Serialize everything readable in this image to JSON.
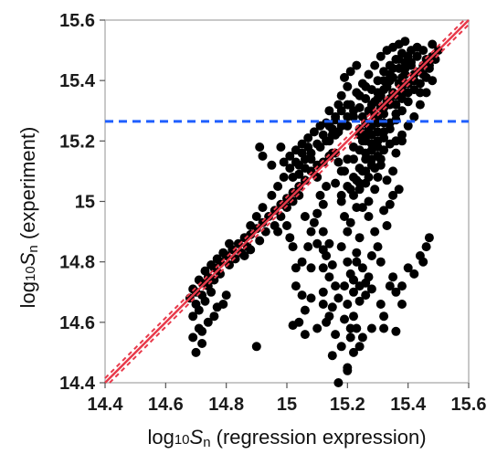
{
  "chart_data": {
    "type": "scatter",
    "title": "",
    "xlabel": {
      "prefix": "log",
      "base": "10",
      "symbol": "S",
      "sub": "n",
      "suffix": " (regression expression)"
    },
    "ylabel": {
      "prefix": "log",
      "base": "10",
      "symbol": "S",
      "sub": "n",
      "suffix": " (experiment)"
    },
    "xlim": [
      14.4,
      15.6
    ],
    "ylim": [
      14.4,
      15.6
    ],
    "x_ticks": [
      {
        "value": 14.4,
        "label": "14.4"
      },
      {
        "value": 14.6,
        "label": "14.6"
      },
      {
        "value": 14.8,
        "label": "14.8"
      },
      {
        "value": 15.0,
        "label": "15"
      },
      {
        "value": 15.2,
        "label": "15.2"
      },
      {
        "value": 15.4,
        "label": "15.4"
      },
      {
        "value": 15.6,
        "label": "15.6"
      }
    ],
    "y_ticks": [
      {
        "value": 14.4,
        "label": "14.4"
      },
      {
        "value": 14.6,
        "label": "14.6"
      },
      {
        "value": 14.8,
        "label": "14.8"
      },
      {
        "value": 15.0,
        "label": "15"
      },
      {
        "value": 15.2,
        "label": "15.2"
      },
      {
        "value": 15.4,
        "label": "15.4"
      },
      {
        "value": 15.6,
        "label": "15.6"
      }
    ],
    "grid": false,
    "legend": "none",
    "reference_lines": [
      {
        "kind": "fit",
        "from": [
          14.4,
          14.4
        ],
        "to": [
          15.6,
          15.6
        ],
        "color": "#e8394a",
        "style": "solid",
        "confidence_band": 0.015
      },
      {
        "kind": "horizontal",
        "y": 15.265,
        "color": "#1f5fff",
        "style": "dashed"
      }
    ],
    "point_color": "#000000",
    "points": [
      [
        14.68,
        14.68
      ],
      [
        14.7,
        14.7
      ],
      [
        14.72,
        14.73
      ],
      [
        14.74,
        14.75
      ],
      [
        14.76,
        14.78
      ],
      [
        14.78,
        14.8
      ],
      [
        14.8,
        14.82
      ],
      [
        14.82,
        14.84
      ],
      [
        14.84,
        14.86
      ],
      [
        14.86,
        14.88
      ],
      [
        14.88,
        14.89
      ],
      [
        14.9,
        14.91
      ],
      [
        14.92,
        14.93
      ],
      [
        14.94,
        14.95
      ],
      [
        14.96,
        14.97
      ],
      [
        14.98,
        14.99
      ],
      [
        15.0,
        15.01
      ],
      [
        15.02,
        15.03
      ],
      [
        15.04,
        15.05
      ],
      [
        15.06,
        15.07
      ],
      [
        14.7,
        14.66
      ],
      [
        14.72,
        14.69
      ],
      [
        14.74,
        14.72
      ],
      [
        14.76,
        14.74
      ],
      [
        14.78,
        14.76
      ],
      [
        14.81,
        14.79
      ],
      [
        14.83,
        14.81
      ],
      [
        14.85,
        14.83
      ],
      [
        14.87,
        14.85
      ],
      [
        14.69,
        14.62
      ],
      [
        14.71,
        14.64
      ],
      [
        14.73,
        14.67
      ],
      [
        14.75,
        14.7
      ],
      [
        14.69,
        14.71
      ],
      [
        14.71,
        14.74
      ],
      [
        14.73,
        14.77
      ],
      [
        14.75,
        14.79
      ],
      [
        14.77,
        14.81
      ],
      [
        14.79,
        14.83
      ],
      [
        14.81,
        14.86
      ],
      [
        14.7,
        14.5
      ],
      [
        14.72,
        14.53
      ],
      [
        14.72,
        14.57
      ],
      [
        14.74,
        14.6
      ],
      [
        14.76,
        14.62
      ],
      [
        14.77,
        14.65
      ],
      [
        14.79,
        14.66
      ],
      [
        14.8,
        14.69
      ],
      [
        14.69,
        14.55
      ],
      [
        14.71,
        14.58
      ],
      [
        14.9,
        14.52
      ],
      [
        14.86,
        14.82
      ],
      [
        14.88,
        14.84
      ],
      [
        14.91,
        14.87
      ],
      [
        14.93,
        14.9
      ],
      [
        14.96,
        14.92
      ],
      [
        14.98,
        14.95
      ],
      [
        15.0,
        14.98
      ],
      [
        15.02,
        15.0
      ],
      [
        15.04,
        15.02
      ],
      [
        14.88,
        14.92
      ],
      [
        14.9,
        14.95
      ],
      [
        14.92,
        14.98
      ],
      [
        14.95,
        15.02
      ],
      [
        14.97,
        15.05
      ],
      [
        14.99,
        15.08
      ],
      [
        15.01,
        15.11
      ],
      [
        15.03,
        15.13
      ],
      [
        15.05,
        15.16
      ],
      [
        15.07,
        15.18
      ],
      [
        14.92,
        15.15
      ],
      [
        14.91,
        15.18
      ],
      [
        14.95,
        15.12
      ],
      [
        14.98,
        15.18
      ],
      [
        14.97,
        14.9
      ],
      [
        15.0,
        14.92
      ],
      [
        15.01,
        14.88
      ],
      [
        15.02,
        14.85
      ],
      [
        15.03,
        14.78
      ],
      [
        15.03,
        14.72
      ],
      [
        15.05,
        14.69
      ],
      [
        15.04,
        14.6
      ],
      [
        15.06,
        14.64
      ],
      [
        15.05,
        14.8
      ],
      [
        15.07,
        14.85
      ],
      [
        15.06,
        14.56
      ],
      [
        15.02,
        14.59
      ],
      [
        15.08,
        14.68
      ],
      [
        15.08,
        15.1
      ],
      [
        15.1,
        15.12
      ],
      [
        15.12,
        15.13
      ],
      [
        15.14,
        15.15
      ],
      [
        15.16,
        15.16
      ],
      [
        15.11,
        15.18
      ],
      [
        15.13,
        15.2
      ],
      [
        15.15,
        15.22
      ],
      [
        15.17,
        15.23
      ],
      [
        15.1,
        15.08
      ],
      [
        15.1,
        14.96
      ],
      [
        15.12,
        14.99
      ],
      [
        15.11,
        15.02
      ],
      [
        15.13,
        15.05
      ],
      [
        15.09,
        14.93
      ],
      [
        15.12,
        14.9
      ],
      [
        15.14,
        14.86
      ],
      [
        15.13,
        14.82
      ],
      [
        15.15,
        14.79
      ],
      [
        15.14,
        14.75
      ],
      [
        15.16,
        14.72
      ],
      [
        15.12,
        14.66
      ],
      [
        15.14,
        14.62
      ],
      [
        15.1,
        14.58
      ],
      [
        15.16,
        14.56
      ],
      [
        15.18,
        14.52
      ],
      [
        15.15,
        14.49
      ],
      [
        15.2,
        14.45
      ],
      [
        15.17,
        14.4
      ],
      [
        15.12,
        14.7
      ],
      [
        15.18,
        15.0
      ],
      [
        15.19,
        14.95
      ],
      [
        15.2,
        14.9
      ],
      [
        15.18,
        14.85
      ],
      [
        15.2,
        14.8
      ],
      [
        15.21,
        14.76
      ],
      [
        15.19,
        14.72
      ],
      [
        15.22,
        14.7
      ],
      [
        15.2,
        14.66
      ],
      [
        15.22,
        14.62
      ],
      [
        15.23,
        14.58
      ],
      [
        15.21,
        14.55
      ],
      [
        15.24,
        14.52
      ],
      [
        15.19,
        14.61
      ],
      [
        15.17,
        14.68
      ],
      [
        15.22,
        14.74
      ],
      [
        15.23,
        14.83
      ],
      [
        15.24,
        14.88
      ],
      [
        15.21,
        14.93
      ],
      [
        15.23,
        14.98
      ],
      [
        15.22,
        14.74
      ],
      [
        15.24,
        14.72
      ],
      [
        15.26,
        14.73
      ],
      [
        15.27,
        14.75
      ],
      [
        15.25,
        14.78
      ],
      [
        15.23,
        14.8
      ],
      [
        15.26,
        14.69
      ],
      [
        15.28,
        14.71
      ],
      [
        15.24,
        14.67
      ],
      [
        15.18,
        15.02
      ],
      [
        15.2,
        15.05
      ],
      [
        15.22,
        15.08
      ],
      [
        15.24,
        15.11
      ],
      [
        15.26,
        15.14
      ],
      [
        15.28,
        15.17
      ],
      [
        15.3,
        15.2
      ],
      [
        15.32,
        15.23
      ],
      [
        15.34,
        15.26
      ],
      [
        15.36,
        15.29
      ],
      [
        15.16,
        15.06
      ],
      [
        15.18,
        15.1
      ],
      [
        15.2,
        15.14
      ],
      [
        15.22,
        15.18
      ],
      [
        15.24,
        15.22
      ],
      [
        15.26,
        15.26
      ],
      [
        15.28,
        15.3
      ],
      [
        15.3,
        15.34
      ],
      [
        15.32,
        15.37
      ],
      [
        15.34,
        15.4
      ],
      [
        15.2,
        15.25
      ],
      [
        15.22,
        15.28
      ],
      [
        15.24,
        15.31
      ],
      [
        15.26,
        15.34
      ],
      [
        15.28,
        15.37
      ],
      [
        15.3,
        15.4
      ],
      [
        15.32,
        15.43
      ],
      [
        15.34,
        15.45
      ],
      [
        15.36,
        15.47
      ],
      [
        15.38,
        15.49
      ],
      [
        15.22,
        15.02
      ],
      [
        15.24,
        15.06
      ],
      [
        15.26,
        15.1
      ],
      [
        15.28,
        15.14
      ],
      [
        15.3,
        15.18
      ],
      [
        15.32,
        15.21
      ],
      [
        15.34,
        15.24
      ],
      [
        15.36,
        15.27
      ],
      [
        15.38,
        15.3
      ],
      [
        15.4,
        15.33
      ],
      [
        15.21,
        15.32
      ],
      [
        15.23,
        15.36
      ],
      [
        15.25,
        15.39
      ],
      [
        15.27,
        15.42
      ],
      [
        15.29,
        15.45
      ],
      [
        15.31,
        15.48
      ],
      [
        15.33,
        15.5
      ],
      [
        15.35,
        15.51
      ],
      [
        15.37,
        15.52
      ],
      [
        15.39,
        15.53
      ],
      [
        15.25,
        15.2
      ],
      [
        15.27,
        15.24
      ],
      [
        15.29,
        15.28
      ],
      [
        15.31,
        15.31
      ],
      [
        15.33,
        15.33
      ],
      [
        15.35,
        15.36
      ],
      [
        15.37,
        15.39
      ],
      [
        15.39,
        15.42
      ],
      [
        15.41,
        15.45
      ],
      [
        15.43,
        15.48
      ],
      [
        15.4,
        15.36
      ],
      [
        15.42,
        15.4
      ],
      [
        15.44,
        15.43
      ],
      [
        15.46,
        15.47
      ],
      [
        15.45,
        15.5
      ],
      [
        15.43,
        15.51
      ],
      [
        15.41,
        15.5
      ],
      [
        15.44,
        15.36
      ],
      [
        15.46,
        15.41
      ],
      [
        15.38,
        15.34
      ],
      [
        15.25,
        15.28
      ],
      [
        15.27,
        15.3
      ],
      [
        15.29,
        15.33
      ],
      [
        15.31,
        15.35
      ],
      [
        15.33,
        15.38
      ],
      [
        15.35,
        15.41
      ],
      [
        15.37,
        15.44
      ],
      [
        15.39,
        15.46
      ],
      [
        15.28,
        15.22
      ],
      [
        15.3,
        15.26
      ],
      [
        15.32,
        15.29
      ],
      [
        15.34,
        15.32
      ],
      [
        15.36,
        15.35
      ],
      [
        15.38,
        15.38
      ],
      [
        15.26,
        15.16
      ],
      [
        15.28,
        15.19
      ],
      [
        15.3,
        15.23
      ],
      [
        15.32,
        15.26
      ],
      [
        15.24,
        15.24
      ],
      [
        15.26,
        15.22
      ],
      [
        15.25,
        14.98
      ],
      [
        15.27,
        15.0
      ],
      [
        15.29,
        15.04
      ],
      [
        15.27,
        14.95
      ],
      [
        15.29,
        14.9
      ],
      [
        15.3,
        14.85
      ],
      [
        15.28,
        14.82
      ],
      [
        15.31,
        14.8
      ],
      [
        15.33,
        15.07
      ],
      [
        15.35,
        15.1
      ],
      [
        15.32,
        14.97
      ],
      [
        15.34,
        14.99
      ],
      [
        15.33,
        14.92
      ],
      [
        15.35,
        15.02
      ],
      [
        15.37,
        15.04
      ],
      [
        15.36,
        15.16
      ],
      [
        15.38,
        15.2
      ],
      [
        15.3,
        15.08
      ],
      [
        15.31,
        15.12
      ],
      [
        15.16,
        15.28
      ],
      [
        15.17,
        15.32
      ],
      [
        15.14,
        15.3
      ],
      [
        15.13,
        15.26
      ],
      [
        15.15,
        15.24
      ],
      [
        15.18,
        15.35
      ],
      [
        15.2,
        15.38
      ],
      [
        15.19,
        15.41
      ],
      [
        15.21,
        15.43
      ],
      [
        15.23,
        15.45
      ],
      [
        15.28,
        14.58
      ],
      [
        15.32,
        14.58
      ],
      [
        15.32,
        14.62
      ],
      [
        15.36,
        14.57
      ],
      [
        15.34,
        14.72
      ],
      [
        15.38,
        14.72
      ],
      [
        15.4,
        14.78
      ],
      [
        15.42,
        14.76
      ],
      [
        15.44,
        14.82
      ],
      [
        15.46,
        14.85
      ],
      [
        15.47,
        14.88
      ],
      [
        15.45,
        14.8
      ],
      [
        15.36,
        14.7
      ],
      [
        15.38,
        14.66
      ],
      [
        15.31,
        14.66
      ],
      [
        15.35,
        14.75
      ],
      [
        15.12,
        14.78
      ],
      [
        15.1,
        14.86
      ],
      [
        15.08,
        14.9
      ],
      [
        15.06,
        14.95
      ],
      [
        15.13,
        14.6
      ],
      [
        15.15,
        14.65
      ],
      [
        15.2,
        14.44
      ],
      [
        15.25,
        14.55
      ],
      [
        15.21,
        14.58
      ],
      [
        15.22,
        14.5
      ],
      [
        15.1,
        14.96
      ],
      [
        15.12,
        14.84
      ],
      [
        15.08,
        14.78
      ],
      [
        15.36,
        15.2
      ],
      [
        15.38,
        15.22
      ],
      [
        15.4,
        15.25
      ],
      [
        15.42,
        15.28
      ],
      [
        15.44,
        15.32
      ],
      [
        15.46,
        15.36
      ],
      [
        15.48,
        15.4
      ],
      [
        15.47,
        15.44
      ],
      [
        15.48,
        15.48
      ],
      [
        15.45,
        15.45
      ],
      [
        15.02,
        15.08
      ],
      [
        15.04,
        15.12
      ],
      [
        15.06,
        15.14
      ],
      [
        15.08,
        15.16
      ],
      [
        15.1,
        15.19
      ],
      [
        15.12,
        15.22
      ],
      [
        15.14,
        15.25
      ],
      [
        15.16,
        15.27
      ],
      [
        15.18,
        15.3
      ],
      [
        15.2,
        15.32
      ],
      [
        15.24,
        15.04
      ],
      [
        15.26,
        15.06
      ],
      [
        15.28,
        15.12
      ],
      [
        15.3,
        15.15
      ],
      [
        15.32,
        15.17
      ],
      [
        15.34,
        15.19
      ],
      [
        15.22,
        15.14
      ],
      [
        15.24,
        15.17
      ],
      [
        15.26,
        15.2
      ],
      [
        15.28,
        15.25
      ],
      [
        15.3,
        15.28
      ],
      [
        15.32,
        15.31
      ],
      [
        15.34,
        15.34
      ],
      [
        15.36,
        15.32
      ],
      [
        15.38,
        15.36
      ],
      [
        15.4,
        15.39
      ],
      [
        15.42,
        15.42
      ],
      [
        15.35,
        15.44
      ],
      [
        15.37,
        15.47
      ],
      [
        15.4,
        15.48
      ],
      [
        15.28,
        15.32
      ],
      [
        15.3,
        15.36
      ],
      [
        15.32,
        15.4
      ],
      [
        15.34,
        15.42
      ],
      [
        15.26,
        15.38
      ],
      [
        15.24,
        15.35
      ],
      [
        15.22,
        15.3
      ],
      [
        15.2,
        15.28
      ],
      [
        15.18,
        15.25
      ],
      [
        15.16,
        15.22
      ],
      [
        15.27,
        15.08
      ],
      [
        15.29,
        15.11
      ],
      [
        15.31,
        15.14
      ],
      [
        15.25,
        15.1
      ],
      [
        15.23,
        15.07
      ],
      [
        15.21,
        15.04
      ],
      [
        15.19,
        15.1
      ],
      [
        15.17,
        15.13
      ],
      [
        15.15,
        15.16
      ],
      [
        15.14,
        15.2
      ],
      [
        15.38,
        15.41
      ],
      [
        15.39,
        15.44
      ],
      [
        15.41,
        15.46
      ],
      [
        15.42,
        15.37
      ],
      [
        15.44,
        15.39
      ],
      [
        15.45,
        15.42
      ],
      [
        15.47,
        15.45
      ],
      [
        15.49,
        15.47
      ],
      [
        15.5,
        15.5
      ],
      [
        15.48,
        15.52
      ],
      [
        15.05,
        15.19
      ],
      [
        15.07,
        15.21
      ],
      [
        15.09,
        15.23
      ],
      [
        15.11,
        15.25
      ],
      [
        15.03,
        15.17
      ],
      [
        15.01,
        15.15
      ],
      [
        14.99,
        15.13
      ],
      [
        15.04,
        15.09
      ],
      [
        15.06,
        15.11
      ],
      [
        15.08,
        15.14
      ]
    ]
  }
}
